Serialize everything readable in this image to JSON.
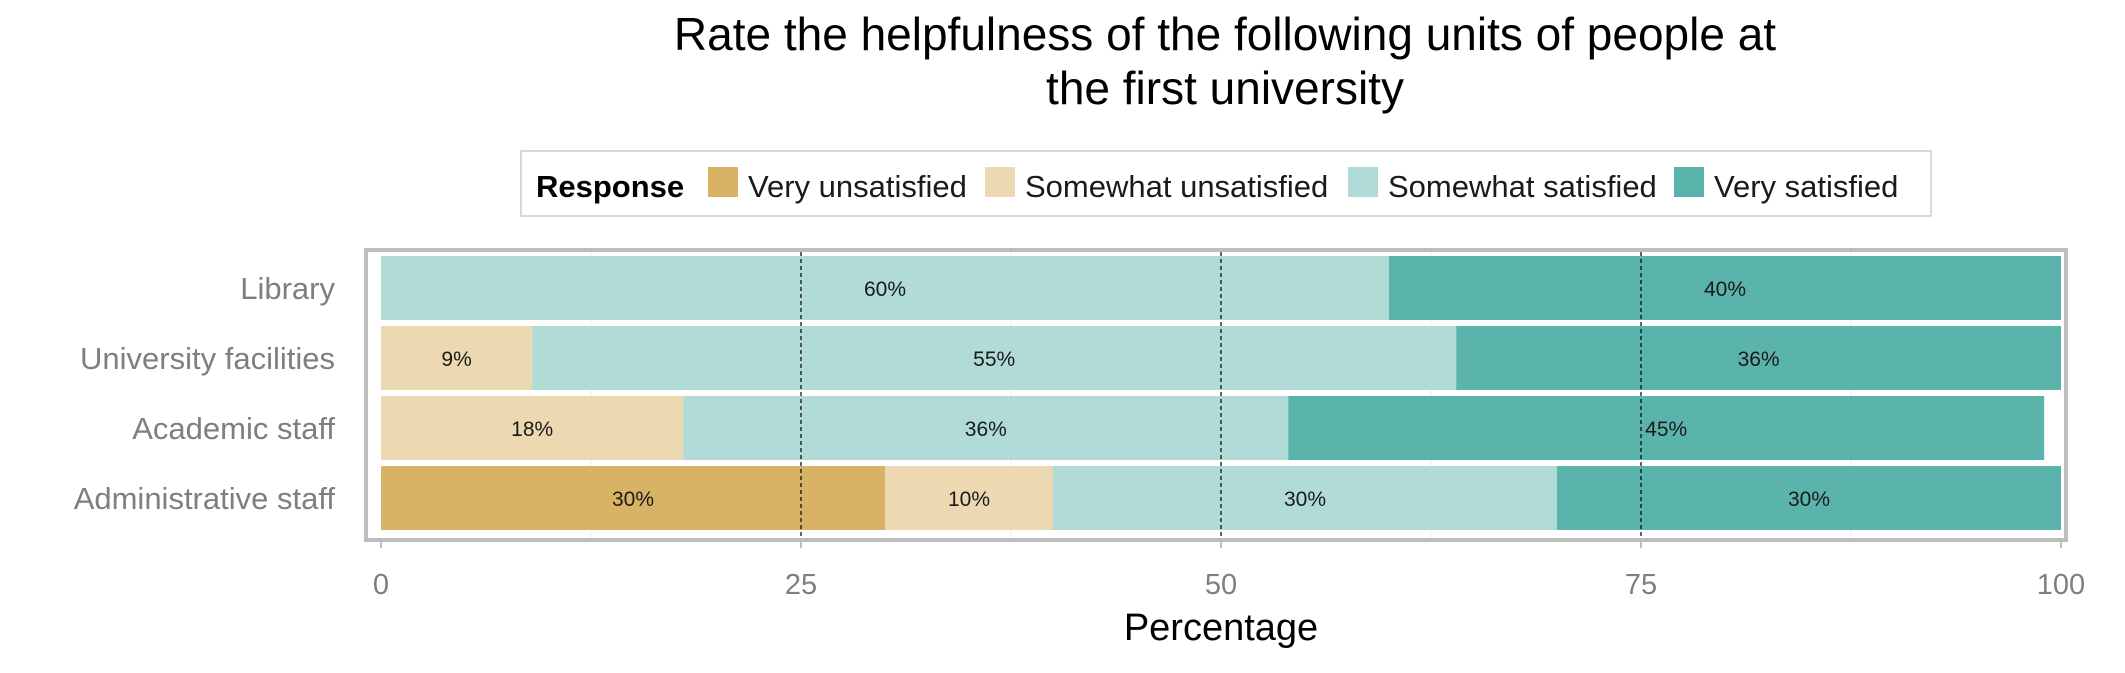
{
  "chart_data": {
    "type": "bar",
    "orientation": "horizontal",
    "stacked": true,
    "title": "Rate the helpfulness of the following units of people at",
    "title_line2": "the first university",
    "xlabel": "Percentage",
    "ylabel": "",
    "xlim": [
      0,
      100
    ],
    "xticks": [
      "0",
      "25",
      "50",
      "75",
      "100"
    ],
    "xtick_values": [
      0,
      25,
      50,
      75,
      100
    ],
    "reference_lines": [
      25,
      50,
      75
    ],
    "legend_title": "Response",
    "legend_position": "top",
    "categories": [
      "Library",
      "University facilities",
      "Academic staff",
      "Administrative staff"
    ],
    "series": [
      {
        "name": "Very unsatisfied",
        "color": "#d8b365",
        "values": [
          0,
          0,
          0,
          30
        ],
        "labels": [
          "",
          "",
          "",
          "30%"
        ]
      },
      {
        "name": "Somewhat unsatisfied",
        "color": "#ecd9b2",
        "values": [
          0,
          9,
          18,
          10
        ],
        "labels": [
          "",
          "9%",
          "18%",
          "10%"
        ]
      },
      {
        "name": "Somewhat satisfied",
        "color": "#b0dbd7",
        "values": [
          60,
          55,
          36,
          30
        ],
        "labels": [
          "60%",
          "55%",
          "36%",
          "30%"
        ]
      },
      {
        "name": "Very satisfied",
        "color": "#5ab4ac",
        "values": [
          40,
          36,
          45,
          30
        ],
        "labels": [
          "40%",
          "36%",
          "45%",
          "30%"
        ]
      }
    ]
  }
}
